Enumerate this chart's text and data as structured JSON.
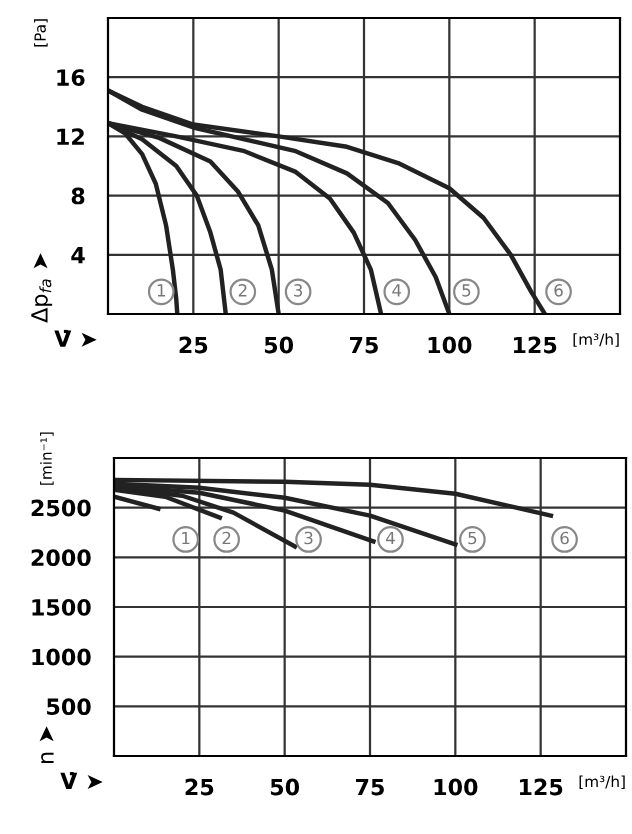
{
  "chart_data": [
    {
      "type": "line",
      "xlabel": "V̇ ➤",
      "ylabel": "Δp$_{fa}$ ➤",
      "xlim": [
        0,
        150
      ],
      "xticks": [
        25,
        50,
        75,
        100,
        125
      ],
      "ylim": [
        0,
        20
      ],
      "yticks": [
        4,
        8,
        12,
        16
      ],
      "grid": true,
      "legend": false,
      "marker": "none",
      "line_style": "solid",
      "series": [
        {
          "color": "#222222",
          "x": [
            0,
            5,
            10,
            14,
            17,
            19,
            20,
            20.3
          ],
          "values": [
            12.9,
            12.2,
            10.8,
            8.8,
            6,
            3,
            1,
            0
          ]
        },
        {
          "color": "#222222",
          "x": [
            0,
            10,
            20,
            26,
            30,
            33,
            34.5
          ],
          "values": [
            12.9,
            11.8,
            10,
            8,
            5.5,
            3,
            0
          ]
        },
        {
          "color": "#222222",
          "x": [
            0,
            15,
            30,
            38,
            44,
            48,
            50
          ],
          "values": [
            12.9,
            11.9,
            10.3,
            8.3,
            6,
            3,
            0
          ]
        },
        {
          "color": "#222222",
          "x": [
            0,
            20,
            40,
            55,
            65,
            72,
            77,
            80
          ],
          "values": [
            12.9,
            12,
            11,
            9.6,
            7.8,
            5.5,
            3,
            0
          ]
        },
        {
          "color": "#222222",
          "x": [
            0,
            10,
            25,
            40,
            55,
            70,
            82,
            90,
            96,
            100
          ],
          "values": [
            15.1,
            13.8,
            12.6,
            11.8,
            11,
            9.5,
            7.5,
            5,
            2.5,
            0
          ]
        },
        {
          "color": "#222222",
          "x": [
            0,
            10,
            25,
            50,
            70,
            85,
            100,
            110,
            118,
            124,
            128
          ],
          "values": [
            15.1,
            14,
            12.8,
            12,
            11.3,
            10.2,
            8.5,
            6.5,
            4,
            1.5,
            0
          ]
        }
      ],
      "annotations": [
        "[m³/h]",
        "[Pa]",
        {
          "text": "1",
          "x": 15.6,
          "y": 1.5
        },
        {
          "text": "2",
          "x": 39.5,
          "y": 1.5
        },
        {
          "text": "3",
          "x": 55.7,
          "y": 1.5
        },
        {
          "text": "4",
          "x": 84.6,
          "y": 1.5
        },
        {
          "text": "5",
          "x": 105,
          "y": 1.5
        },
        {
          "text": "6",
          "x": 132,
          "y": 1.5
        }
      ]
    },
    {
      "type": "line",
      "xlabel": "V̇ ➤",
      "ylabel": "n ➤",
      "xlim": [
        0,
        150
      ],
      "xticks": [
        25,
        50,
        75,
        100,
        125
      ],
      "ylim": [
        0,
        3000
      ],
      "yticks": [
        500,
        1000,
        1500,
        2000,
        2500
      ],
      "grid": true,
      "legend": false,
      "marker": "none",
      "line_style": "solid",
      "series": [
        {
          "color": "#222222",
          "x": [
            0,
            13
          ],
          "values": [
            2610,
            2490
          ]
        },
        {
          "color": "#222222",
          "x": [
            0,
            15,
            31
          ],
          "values": [
            2680,
            2610,
            2400
          ]
        },
        {
          "color": "#222222",
          "x": [
            0,
            20,
            35,
            53
          ],
          "values": [
            2700,
            2620,
            2450,
            2110
          ]
        },
        {
          "color": "#222222",
          "x": [
            0,
            25,
            50,
            76
          ],
          "values": [
            2720,
            2650,
            2470,
            2160
          ]
        },
        {
          "color": "#222222",
          "x": [
            0,
            25,
            50,
            75,
            100
          ],
          "values": [
            2740,
            2700,
            2600,
            2420,
            2130
          ]
        },
        {
          "color": "#222222",
          "x": [
            0,
            50,
            75,
            100,
            128
          ],
          "values": [
            2780,
            2760,
            2730,
            2640,
            2420
          ]
        }
      ],
      "annotations": [
        "[m³/h]",
        "[min⁻¹]",
        {
          "text": "1",
          "x": 21,
          "y": 2180
        },
        {
          "text": "2",
          "x": 33,
          "y": 2180
        },
        {
          "text": "3",
          "x": 57,
          "y": 2180
        },
        {
          "text": "4",
          "x": 81,
          "y": 2180
        },
        {
          "text": "5",
          "x": 105,
          "y": 2180
        },
        {
          "text": "6",
          "x": 132,
          "y": 2180
        }
      ]
    }
  ]
}
